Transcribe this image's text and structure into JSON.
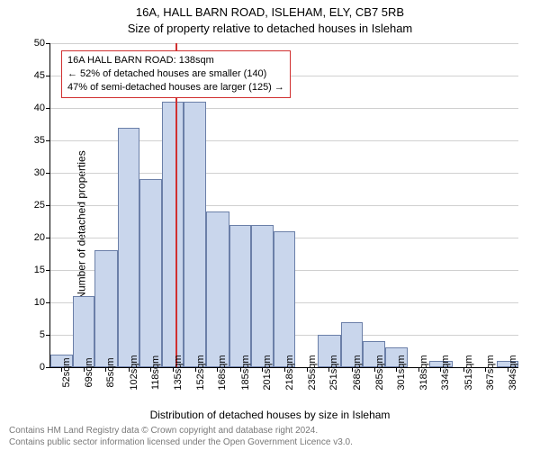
{
  "chart": {
    "type": "histogram",
    "title_main": "16A, HALL BARN ROAD, ISLEHAM, ELY, CB7 5RB",
    "title_sub": "Size of property relative to detached houses in Isleham",
    "title_fontsize": 13,
    "xlabel": "Distribution of detached houses by size in Isleham",
    "ylabel": "Number of detached properties",
    "label_fontsize": 12,
    "background_color": "#ffffff",
    "grid_color": "#d0d0d0",
    "bar_fill": "#c9d6ec",
    "bar_border": "#6b7fa8",
    "marker_color": "#d03030",
    "marker_value": 138,
    "info_box": {
      "line1": "16A HALL BARN ROAD: 138sqm",
      "line2": "← 52% of detached houses are smaller (140)",
      "line3": "47% of semi-detached houses are larger (125) →",
      "border_color": "#d03030"
    },
    "ylim": [
      0,
      50
    ],
    "yticks": [
      0,
      5,
      10,
      15,
      20,
      25,
      30,
      35,
      40,
      45,
      50
    ],
    "xlim": [
      44,
      392
    ],
    "xticks": [
      52,
      69,
      85,
      102,
      118,
      135,
      152,
      168,
      185,
      201,
      218,
      235,
      251,
      268,
      285,
      301,
      318,
      334,
      351,
      367,
      384
    ],
    "xtick_labels": [
      "52sqm",
      "69sqm",
      "85sqm",
      "102sqm",
      "118sqm",
      "135sqm",
      "152sqm",
      "168sqm",
      "185sqm",
      "201sqm",
      "218sqm",
      "235sqm",
      "251sqm",
      "268sqm",
      "285sqm",
      "301sqm",
      "318sqm",
      "334sqm",
      "351sqm",
      "367sqm",
      "384sqm"
    ],
    "bin_edges": [
      44,
      61,
      77,
      94,
      110,
      127,
      143,
      160,
      177,
      193,
      210,
      226,
      243,
      260,
      276,
      293,
      310,
      326,
      343,
      359,
      376,
      392
    ],
    "values": [
      2,
      11,
      18,
      37,
      29,
      41,
      41,
      24,
      22,
      22,
      21,
      0,
      5,
      7,
      4,
      3,
      0,
      1,
      0,
      0,
      1
    ],
    "tick_fontsize": 11
  },
  "footer": {
    "line1": "Contains HM Land Registry data © Crown copyright and database right 2024.",
    "line2": "Contains public sector information licensed under the Open Government Licence v3.0.",
    "color": "#787878",
    "fontsize": 10
  }
}
